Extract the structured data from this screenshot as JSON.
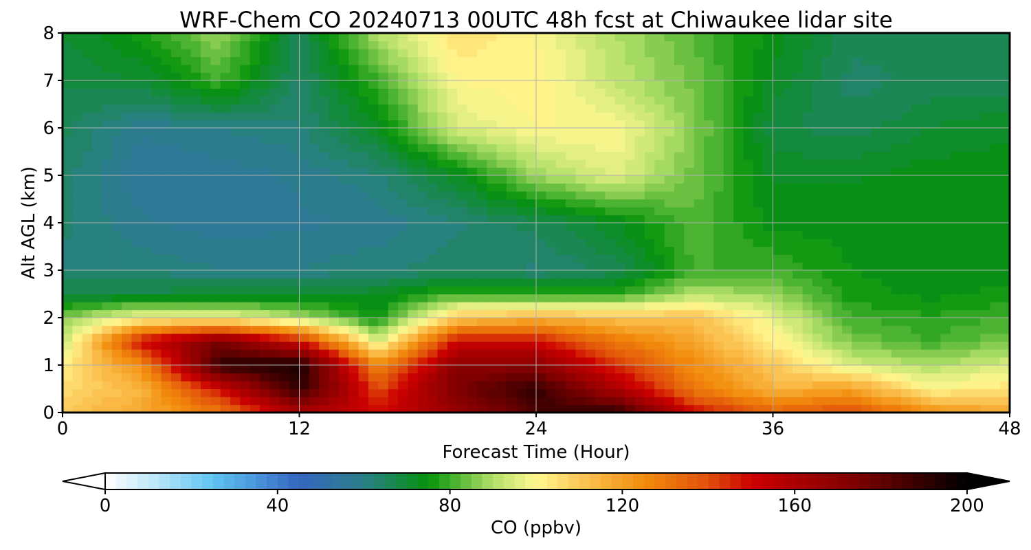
{
  "chart_data": {
    "type": "heatmap",
    "title": "WRF-Chem CO  20240713 00UTC 48h fcst at Chiwaukee lidar site",
    "xlabel": "Forecast Time (Hour)",
    "ylabel": "Alt AGL (km)",
    "xlim": [
      0,
      48
    ],
    "ylim": [
      0,
      8
    ],
    "xticks": [
      "0",
      "12",
      "24",
      "36",
      "48"
    ],
    "yticks": [
      "0",
      "1",
      "2",
      "3",
      "4",
      "5",
      "6",
      "7",
      "8"
    ],
    "grid": true,
    "colorbar": {
      "label": "CO  (ppbv)",
      "range": [
        0,
        200
      ],
      "ticks": [
        "0",
        "40",
        "80",
        "120",
        "160",
        "200"
      ],
      "extend": "both",
      "colors": [
        {
          "v": 0,
          "c": "#ffffff"
        },
        {
          "v": 12,
          "c": "#b8e6f8"
        },
        {
          "v": 25,
          "c": "#5fc4f2"
        },
        {
          "v": 45,
          "c": "#3466c0"
        },
        {
          "v": 60,
          "c": "#2a7f88"
        },
        {
          "v": 75,
          "c": "#04920a"
        },
        {
          "v": 90,
          "c": "#b4e06a"
        },
        {
          "v": 100,
          "c": "#fff890"
        },
        {
          "v": 110,
          "c": "#fcc858"
        },
        {
          "v": 125,
          "c": "#f28c0c"
        },
        {
          "v": 140,
          "c": "#e0500a"
        },
        {
          "v": 150,
          "c": "#cc0000"
        },
        {
          "v": 175,
          "c": "#7a0000"
        },
        {
          "v": 200,
          "c": "#000000"
        }
      ]
    },
    "z_unit": "ppbv",
    "x": [
      0,
      4,
      8,
      12,
      16,
      20,
      24,
      28,
      32,
      36,
      40,
      44,
      48
    ],
    "y": [
      0,
      0.5,
      1,
      1.5,
      2,
      2.5,
      3,
      4,
      5,
      6,
      7,
      8
    ],
    "z": [
      [
        110,
        118,
        130,
        160,
        150,
        165,
        185,
        190,
        150,
        135,
        140,
        125,
        118
      ],
      [
        105,
        115,
        150,
        190,
        140,
        175,
        190,
        160,
        130,
        115,
        120,
        100,
        105
      ],
      [
        102,
        125,
        190,
        195,
        125,
        170,
        170,
        145,
        125,
        110,
        95,
        90,
        95
      ],
      [
        92,
        150,
        175,
        150,
        95,
        150,
        150,
        130,
        118,
        102,
        85,
        80,
        85
      ],
      [
        85,
        100,
        100,
        90,
        75,
        110,
        115,
        112,
        112,
        97,
        80,
        78,
        80
      ],
      [
        68,
        68,
        70,
        70,
        72,
        80,
        78,
        78,
        90,
        88,
        76,
        74,
        76
      ],
      [
        62,
        62,
        60,
        60,
        62,
        64,
        62,
        66,
        80,
        80,
        75,
        74,
        73
      ],
      [
        63,
        58,
        56,
        57,
        58,
        62,
        66,
        72,
        82,
        74,
        74,
        74,
        74
      ],
      [
        64,
        55,
        56,
        58,
        62,
        72,
        88,
        96,
        84,
        72,
        72,
        74,
        74
      ],
      [
        66,
        58,
        60,
        62,
        72,
        95,
        100,
        100,
        86,
        68,
        66,
        70,
        72
      ],
      [
        68,
        70,
        80,
        64,
        80,
        100,
        102,
        92,
        84,
        72,
        64,
        66,
        66
      ],
      [
        70,
        76,
        88,
        66,
        90,
        105,
        100,
        90,
        82,
        74,
        66,
        66,
        66
      ]
    ]
  }
}
